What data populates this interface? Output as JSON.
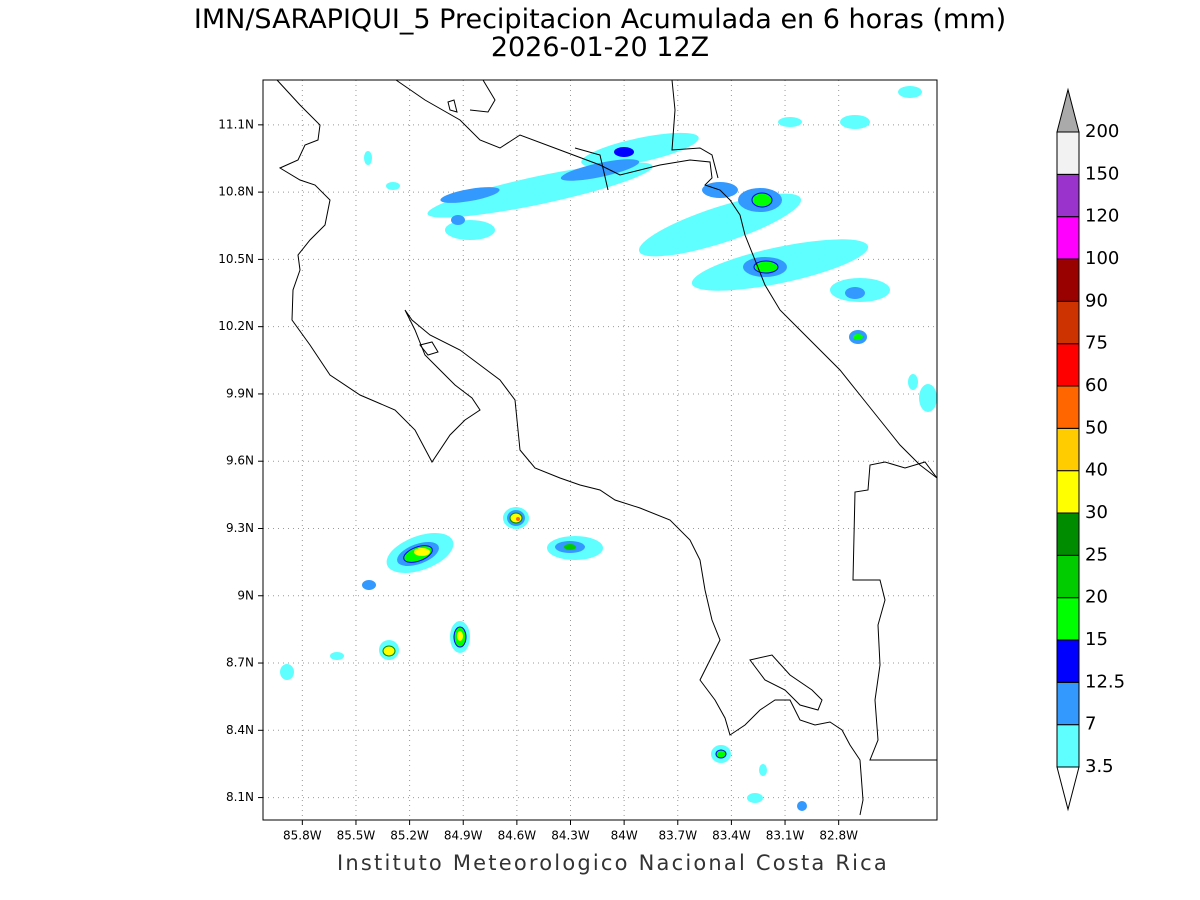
{
  "title": "IMN/SARAPIQUI_5 Precipitacion Acumulada en 6 horas (mm)",
  "subtitle": "2026-01-20 12Z",
  "map": {
    "xlim": [
      -86.02,
      -82.25
    ],
    "ylim": [
      8.0,
      11.3
    ],
    "grid": true,
    "xticks": [
      {
        "value": -85.8,
        "label": "85.8W"
      },
      {
        "value": -85.5,
        "label": "85.5W"
      },
      {
        "value": -85.2,
        "label": "85.2W"
      },
      {
        "value": -84.9,
        "label": "84.9W"
      },
      {
        "value": -84.6,
        "label": "84.6W"
      },
      {
        "value": -84.3,
        "label": "84.3W"
      },
      {
        "value": -84.0,
        "label": "84W"
      },
      {
        "value": -83.7,
        "label": "83.7W"
      },
      {
        "value": -83.4,
        "label": "83.4W"
      },
      {
        "value": -83.1,
        "label": "83.1W"
      },
      {
        "value": -82.8,
        "label": "82.8W"
      }
    ],
    "yticks": [
      {
        "value": 8.1,
        "label": "8.1N"
      },
      {
        "value": 8.4,
        "label": "8.4N"
      },
      {
        "value": 8.7,
        "label": "8.7N"
      },
      {
        "value": 9.0,
        "label": "9N"
      },
      {
        "value": 9.3,
        "label": "9.3N"
      },
      {
        "value": 9.6,
        "label": "9.6N"
      },
      {
        "value": 9.9,
        "label": "9.9N"
      },
      {
        "value": 10.2,
        "label": "10.2N"
      },
      {
        "value": 10.5,
        "label": "10.5N"
      },
      {
        "value": 10.8,
        "label": "10.8N"
      },
      {
        "value": 11.1,
        "label": "11.1N"
      }
    ]
  },
  "colorbar": {
    "levels": [
      3.5,
      7,
      12.5,
      15,
      20,
      25,
      30,
      40,
      50,
      60,
      75,
      90,
      100,
      120,
      150,
      200
    ],
    "colors": [
      "#ffffff",
      "#5fffff",
      "#3399ff",
      "#0000ff",
      "#00ff00",
      "#00cc00",
      "#008c00",
      "#ffff00",
      "#ffcc00",
      "#ff6600",
      "#ff0000",
      "#cc3300",
      "#990000",
      "#ff00ff",
      "#9933cc",
      "#f2f2f2",
      "#aaaaaa"
    ]
  },
  "footer": "Instituto Meteorologico Nacional Costa Rica"
}
